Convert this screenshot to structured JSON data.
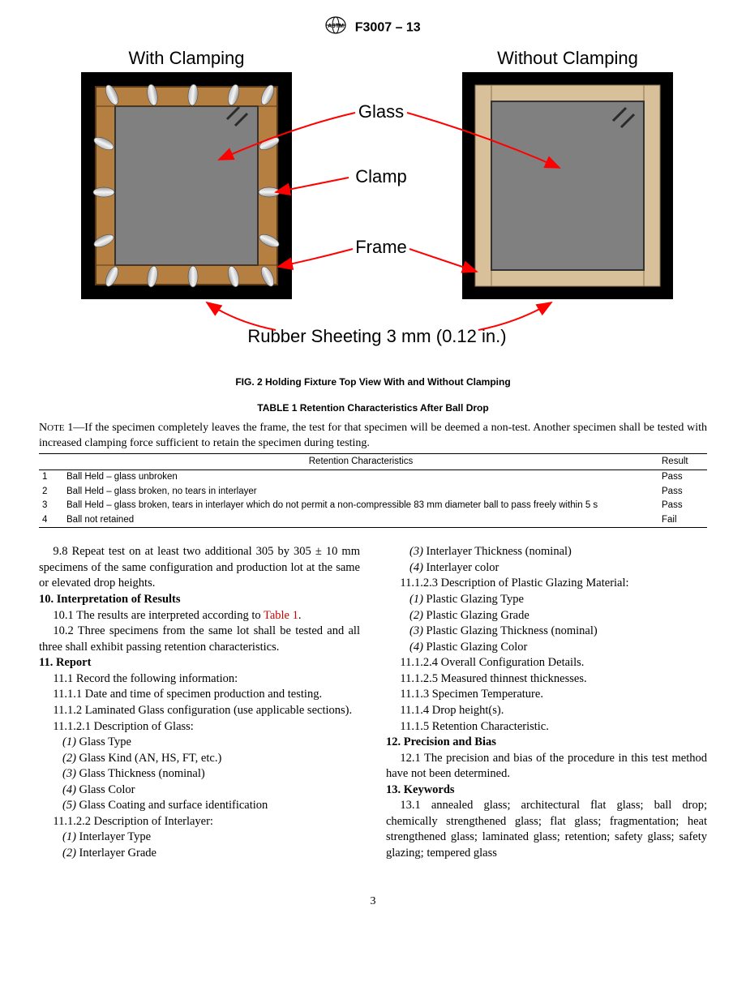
{
  "header": {
    "spec_number": "F3007 – 13"
  },
  "figure": {
    "title_left": "With Clamping",
    "title_right": "Without Clamping",
    "label_glass": "Glass",
    "label_clamp": "Clamp",
    "label_frame": "Frame",
    "rubber_label": "Rubber Sheeting 3 mm (0.12 in.)",
    "caption": "FIG. 2 Holding Fixture Top View With and Without Clamping",
    "colors": {
      "black_frame": "#000000",
      "wood_fill": "#b67f42",
      "wood_stroke": "#5c3a15",
      "light_wood": "#d8c09a",
      "glass_fill": "#808080",
      "glass_reflection": "#333333",
      "clamp_fill": "#cfcfcf",
      "clamp_stroke": "#555555",
      "arrow_red": "#ff0000",
      "label_text": "#000000"
    }
  },
  "table": {
    "title": "TABLE 1 Retention Characteristics After Ball Drop",
    "note": "NOTE 1—If the specimen completely leaves the frame, the test for that specimen will be deemed a non-test. Another specimen shall be tested with increased clamping force sufficient to retain the specimen during testing.",
    "headers": {
      "characteristics": "Retention Characteristics",
      "result": "Result"
    },
    "rows": [
      {
        "n": "1",
        "desc": "Ball Held – glass unbroken",
        "result": "Pass"
      },
      {
        "n": "2",
        "desc": "Ball Held – glass broken, no tears in interlayer",
        "result": "Pass"
      },
      {
        "n": "3",
        "desc": "Ball Held – glass broken, tears in interlayer which do not permit a non-compressible 83 mm diameter ball to pass freely within 5 s",
        "result": "Pass"
      },
      {
        "n": "4",
        "desc": "Ball not retained",
        "result": "Fail"
      }
    ]
  },
  "body": {
    "p98": "9.8 Repeat test on at least two additional 305 by 305 ± 10 mm specimens of the same configuration and production lot at the same or elevated drop heights.",
    "s10_head": "10. Interpretation of Results",
    "p101a": "10.1 The results are interpreted according to ",
    "p101_link": "Table 1",
    "p101b": ".",
    "p102": "10.2 Three specimens from the same lot shall be tested and all three shall exhibit passing retention characteristics.",
    "s11_head": "11. Report",
    "p111": "11.1 Record the following information:",
    "p1111": "11.1.1 Date and time of specimen production and testing.",
    "p1112": "11.1.2 Laminated Glass configuration (use applicable sections).",
    "p11121": "11.1.2.1 Description of Glass:",
    "gl1": "(1) Glass Type",
    "gl2": "(2) Glass Kind (AN, HS, FT, etc.)",
    "gl3": "(3) Glass Thickness (nominal)",
    "gl4": "(4) Glass Color",
    "gl5": "(5) Glass Coating and surface identification",
    "p11122": "11.1.2.2 Description of Interlayer:",
    "il1": "(1) Interlayer Type",
    "il2": "(2) Interlayer Grade",
    "il3": "(3) Interlayer Thickness (nominal)",
    "il4": "(4) Interlayer color",
    "p11123": "11.1.2.3 Description of Plastic Glazing Material:",
    "pg1": "(1) Plastic Glazing Type",
    "pg2": "(2) Plastic Glazing Grade",
    "pg3": "(3) Plastic Glazing Thickness (nominal)",
    "pg4": "(4) Plastic Glazing Color",
    "p11124": "11.1.2.4 Overall Configuration Details.",
    "p11125": "11.1.2.5 Measured thinnest thicknesses.",
    "p1113": "11.1.3 Specimen Temperature.",
    "p1114": "11.1.4 Drop height(s).",
    "p1115": "11.1.5 Retention Characteristic.",
    "s12_head": "12. Precision and Bias",
    "p121": "12.1 The precision and bias of the procedure in this test method have not been determined.",
    "s13_head": "13. Keywords",
    "p131": "13.1 annealed glass; architectural flat glass; ball drop; chemically strengthened glass; flat glass; fragmentation; heat strengthened glass; laminated glass; retention; safety glass; safety glazing; tempered glass"
  },
  "page_number": "3"
}
